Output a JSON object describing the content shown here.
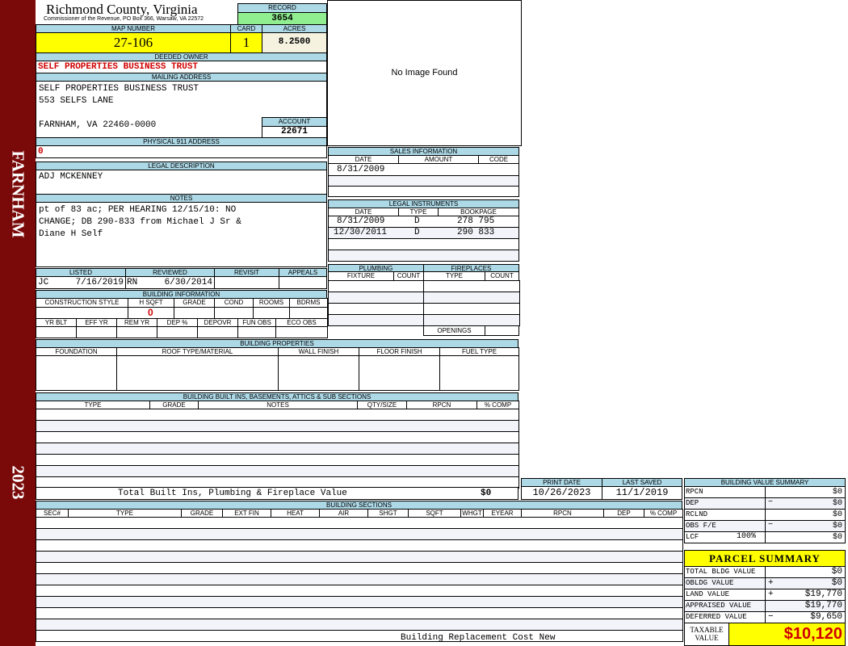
{
  "sidebar": {
    "locality": "FARNHAM",
    "year": "2023"
  },
  "header": {
    "title": "Richmond County, Virginia",
    "subtitle": "Commissioner of the Revenue, PO Box 366, Warsaw, VA 22572",
    "record_label": "RECORD",
    "record": "3654"
  },
  "parcel": {
    "map_label": "MAP NUMBER",
    "map": "27-106",
    "card_label": "CARD",
    "card": "1",
    "acres_label": "ACRES",
    "acres": "8.2500"
  },
  "owner": {
    "label": "DEEDED OWNER",
    "value": "SELF PROPERTIES BUSINESS TRUST"
  },
  "mailing": {
    "label": "MAILING ADDRESS",
    "line1": "SELF PROPERTIES BUSINESS TRUST",
    "line2": "553 SELFS LANE",
    "line3": "FARNHAM, VA 22460-0000"
  },
  "account": {
    "label": "ACCOUNT",
    "value": "22671"
  },
  "physical": {
    "label": "PHYSICAL 911 ADDRESS",
    "value": "0"
  },
  "legal": {
    "label": "LEGAL DESCRIPTION",
    "value": "ADJ MCKENNEY"
  },
  "notes": {
    "label": "NOTES",
    "lines": [
      "pt of 83 ac; PER HEARING 12/15/10: NO",
      "CHANGE; DB 290-833 from Michael J Sr &",
      "Diane H Self"
    ]
  },
  "image": {
    "text": "No Image Found"
  },
  "sales": {
    "label": "SALES INFORMATION",
    "columns": [
      "DATE",
      "AMOUNT",
      "CODE"
    ],
    "rows": [
      [
        "8/31/2009",
        "",
        ""
      ]
    ]
  },
  "instruments": {
    "label": "LEGAL INSTRUMENTS",
    "columns": [
      "DATE",
      "TYPE",
      "BOOKPAGE"
    ],
    "rows": [
      [
        "8/31/2009",
        "D",
        "278 795"
      ],
      [
        "12/30/2011",
        "D",
        "290 833"
      ]
    ]
  },
  "review": {
    "listed_label": "LISTED",
    "reviewed_label": "REVIEWED",
    "revisit_label": "REVISIT",
    "appeals_label": "APPEALS",
    "listed_by": "JC",
    "listed_date": "7/16/2019",
    "reviewed_by": "RN",
    "reviewed_date": "6/30/2014"
  },
  "building_info": {
    "label": "BUILDING INFORMATION",
    "columns1": [
      "CONSTRUCTION STYLE",
      "H SQFT",
      "GRADE",
      "COND",
      "ROOMS",
      "BDRMS"
    ],
    "hsqft": "0",
    "columns2": [
      "YR BLT",
      "EFF YR",
      "REM YR",
      "DEP %",
      "DEPOVR",
      "FUN OBS",
      "ECO OBS"
    ]
  },
  "plumbing": {
    "label": "PLUMBING",
    "columns": [
      "FIXTURE",
      "COUNT"
    ]
  },
  "fireplaces": {
    "label": "FIREPLACES",
    "columns": [
      "TYPE",
      "COUNT"
    ],
    "openings_label": "OPENINGS"
  },
  "properties": {
    "label": "BUILDING PROPERTIES",
    "columns": [
      "FOUNDATION",
      "ROOF TYPE/MATERIAL",
      "WALL FINISH",
      "FLOOR FINISH",
      "FUEL TYPE"
    ]
  },
  "builtins": {
    "label": "BUILDING BUILT INS, BASEMENTS, ATTICS & SUB SECTIONS",
    "columns": [
      "TYPE",
      "GRADE",
      "NOTES",
      "QTY/SIZE",
      "RPCN",
      "% COMP"
    ],
    "total_label": "Total Built Ins, Plumbing & Fireplace Value",
    "total": "$0"
  },
  "dates": {
    "print_label": "PRINT DATE",
    "print": "10/26/2023",
    "saved_label": "LAST SAVED",
    "saved": "11/1/2019"
  },
  "sections": {
    "label": "BUILDING SECTIONS",
    "columns": [
      "SEC#",
      "TYPE",
      "GRADE",
      "EXT FIN",
      "HEAT",
      "AIR",
      "SHGT",
      "SQFT",
      "WHGT",
      "EYEAR",
      "RPCN",
      "DEP",
      "% COMP"
    ],
    "footer": "Building Replacement Cost New"
  },
  "value_summary": {
    "label": "BUILDING VALUE SUMMARY",
    "rows": [
      {
        "label": "RPCN",
        "sign": "",
        "value": "$0"
      },
      {
        "label": "DEP",
        "sign": "−",
        "value": "$0"
      },
      {
        "label": "RCLND",
        "sign": "",
        "value": "$0"
      },
      {
        "label": "OBS F/E",
        "sign": "−",
        "value": "$0"
      },
      {
        "label": "LCF",
        "pct": "100%",
        "sign": "",
        "value": "$0"
      }
    ]
  },
  "parcel_summary": {
    "label": "PARCEL SUMMARY",
    "rows": [
      {
        "label": "TOTAL BLDG VALUE",
        "sign": "",
        "value": "$0"
      },
      {
        "label": "OBLDG VALUE",
        "sign": "+",
        "value": "$0"
      },
      {
        "label": "LAND VALUE",
        "sign": "+",
        "value": "$19,770"
      },
      {
        "label": "APPRAISED VALUE",
        "sign": "",
        "value": "$19,770"
      },
      {
        "label": "DEFERRED VALUE",
        "sign": "−",
        "value": "$9,650"
      }
    ],
    "taxable_label": "TAXABLE VALUE",
    "taxable": "$10,120"
  },
  "colors": {
    "sidebar": "#7a0a0a",
    "header": "#add8e6",
    "highlight": "#ffff00",
    "record": "#90ee90",
    "alert": "#d00000"
  }
}
